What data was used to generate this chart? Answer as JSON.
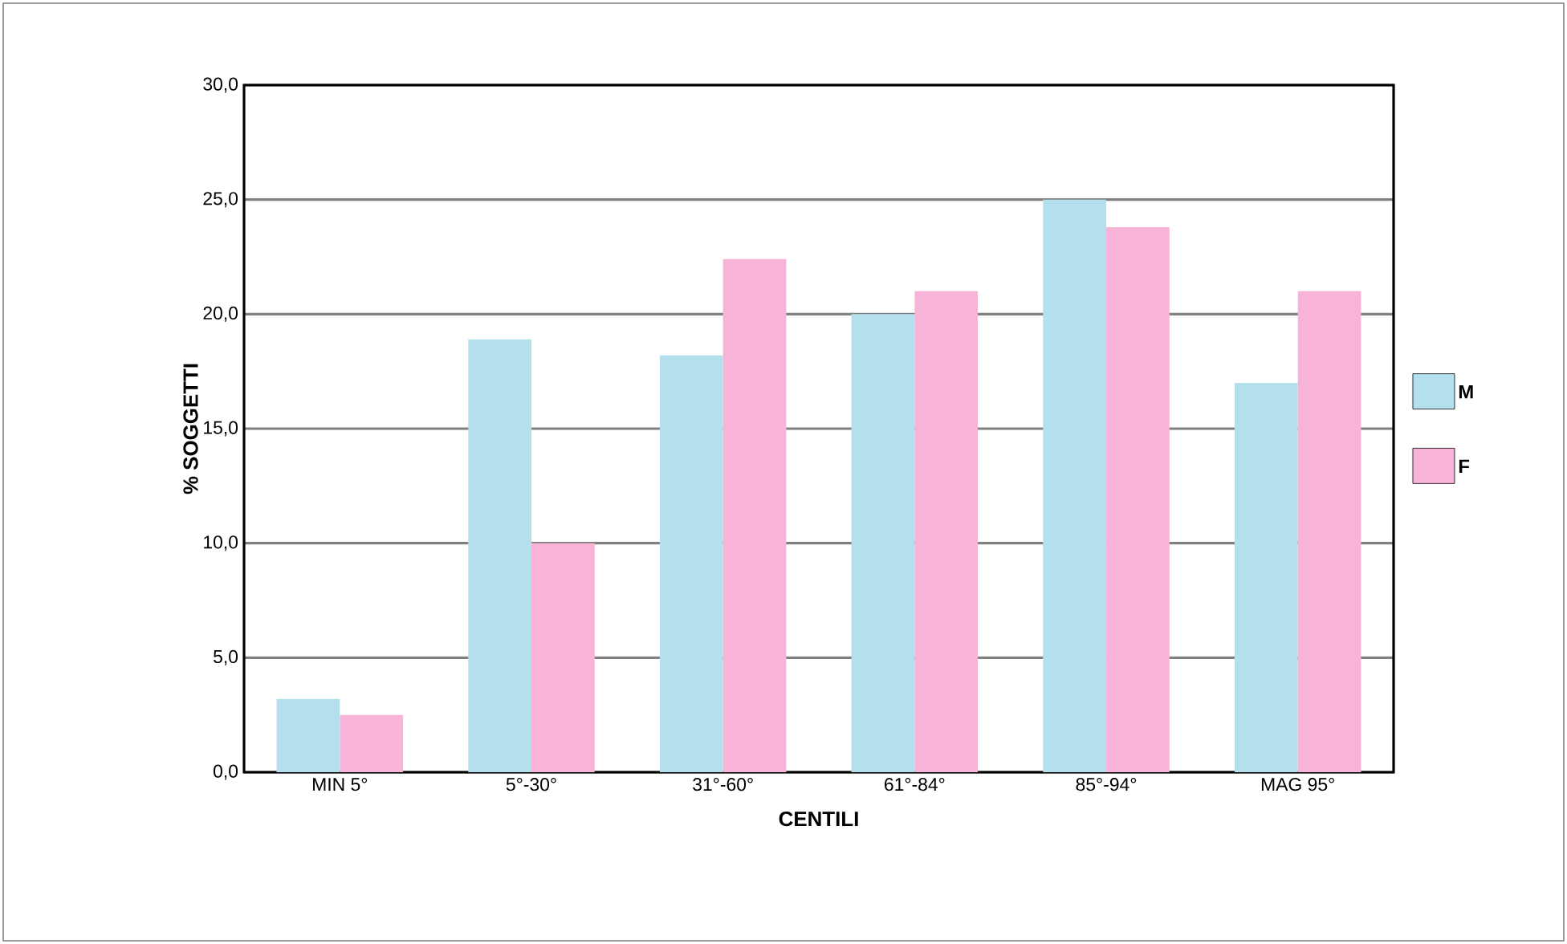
{
  "chart_data": {
    "type": "bar",
    "xlabel": "CENTILI",
    "ylabel": "% SOGGETTI",
    "categories": [
      "MIN 5°",
      "5°-30°",
      "31°-60°",
      "61°-84°",
      "85°-94°",
      "MAG 95°"
    ],
    "series": [
      {
        "name": "M",
        "color": "#b3e0ec",
        "values": [
          3.2,
          18.9,
          18.2,
          20.0,
          25.0,
          17.0
        ]
      },
      {
        "name": "F",
        "color": "#f8b4d8",
        "values": [
          2.5,
          10.0,
          22.4,
          21.0,
          23.8,
          21.0
        ]
      }
    ],
    "ylim": [
      0,
      30
    ],
    "yticks": [
      {
        "value": 0,
        "label": "0,0"
      },
      {
        "value": 5,
        "label": "5,0"
      },
      {
        "value": 10,
        "label": "10,0"
      },
      {
        "value": 15,
        "label": "15,0"
      },
      {
        "value": 20,
        "label": "20,0"
      },
      {
        "value": 25,
        "label": "25,0"
      },
      {
        "value": 30,
        "label": "30,0"
      }
    ],
    "grid": "y",
    "legend": "right"
  }
}
